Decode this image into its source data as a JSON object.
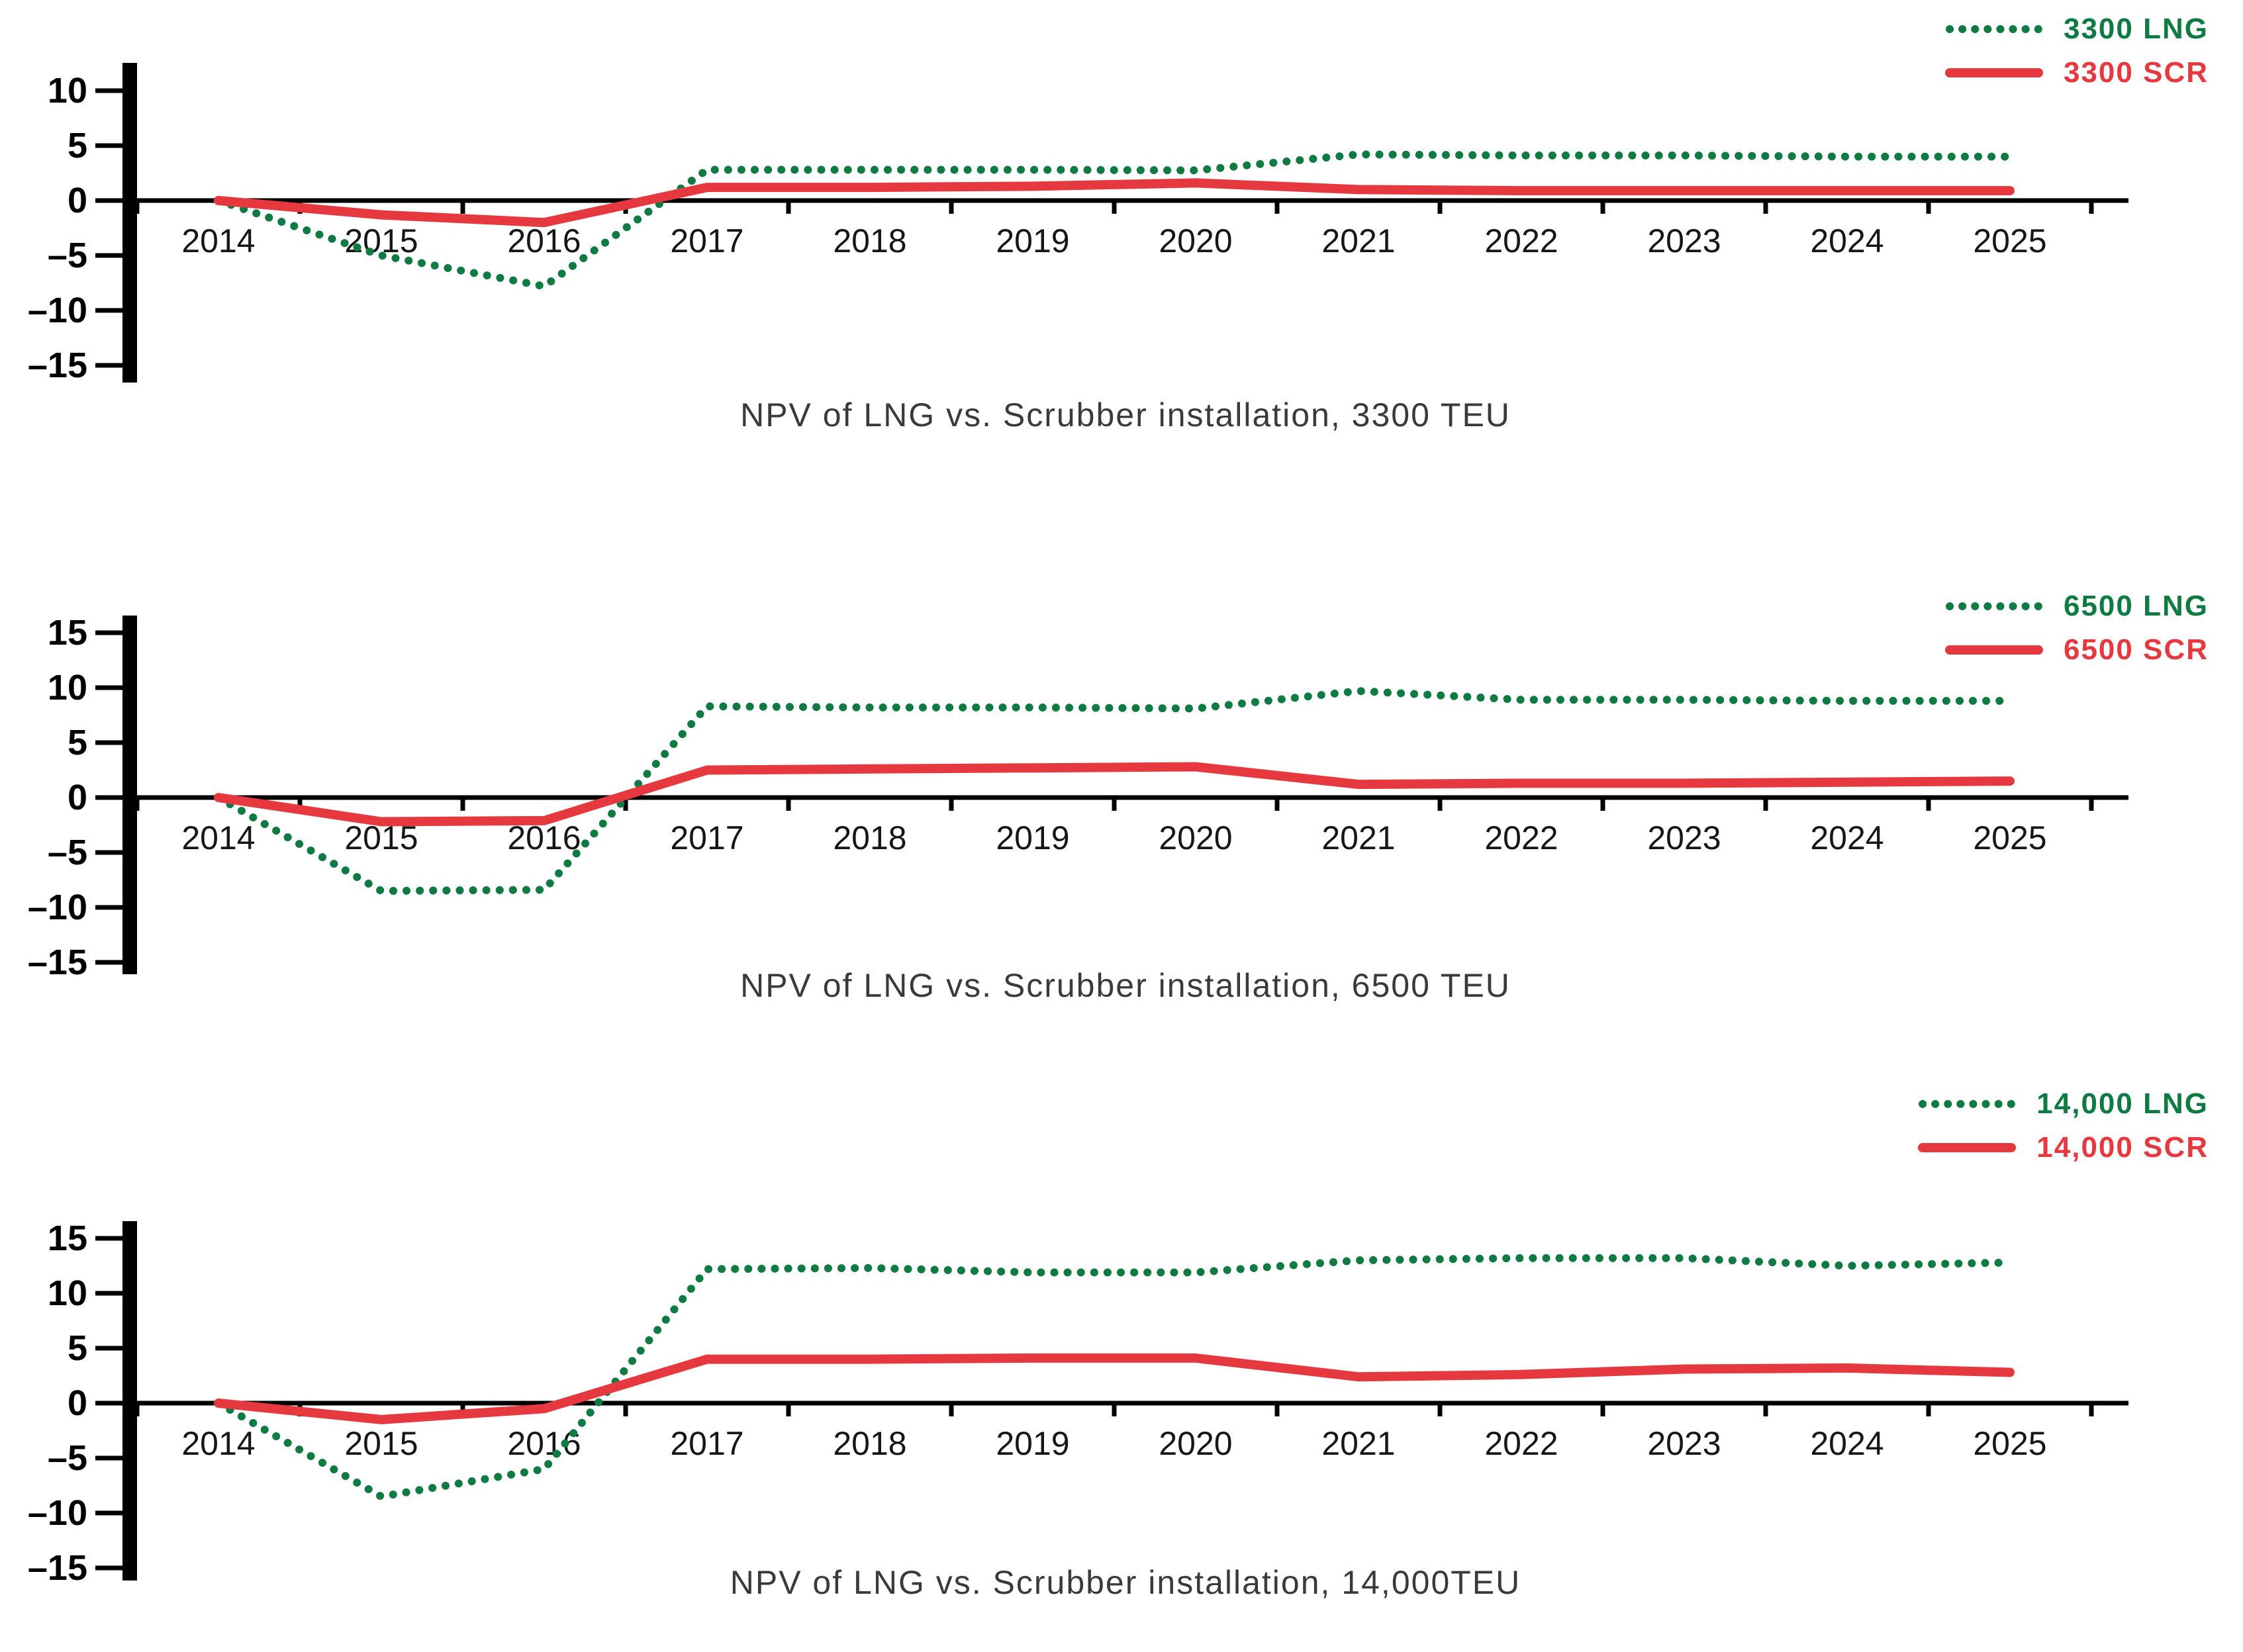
{
  "page": {
    "background": "#ffffff"
  },
  "colors": {
    "lng_green": "#0f7b42",
    "scr_red": "#e6393f",
    "axis_black": "#000000",
    "year_label": "#161616",
    "y_tick_label": "#000000",
    "title_gray": "#3a3a3a"
  },
  "chart_data": [
    {
      "type": "line",
      "title": "NPV of LNG vs. Scrubber installation, 3300 TEU",
      "xlabel": "",
      "ylabel": "",
      "categories": [
        2014,
        2015,
        2016,
        2017,
        2018,
        2019,
        2020,
        2021,
        2022,
        2023,
        2024,
        2025
      ],
      "y_ticks": [
        10,
        5,
        0,
        -5,
        -10,
        -15
      ],
      "ylim": [
        -16.5,
        12.5
      ],
      "grid": false,
      "legend_position": "top-right",
      "series": [
        {
          "name": "3300 LNG",
          "style": "dotted",
          "color_key": "lng_green",
          "values": [
            0,
            -5.0,
            -7.8,
            2.8,
            2.8,
            2.8,
            2.75,
            4.2,
            4.1,
            4.1,
            4.0,
            4.0
          ]
        },
        {
          "name": "3300 SCR",
          "style": "solid",
          "color_key": "scr_red",
          "values": [
            0,
            -1.3,
            -2.0,
            1.2,
            1.2,
            1.3,
            1.6,
            1.0,
            0.9,
            0.9,
            0.9,
            0.9
          ]
        }
      ]
    },
    {
      "type": "line",
      "title": "NPV of LNG vs. Scrubber installation, 6500 TEU",
      "xlabel": "",
      "ylabel": "",
      "categories": [
        2014,
        2015,
        2016,
        2017,
        2018,
        2019,
        2020,
        2021,
        2022,
        2023,
        2024,
        2025
      ],
      "y_ticks": [
        15,
        10,
        5,
        0,
        -5,
        -10,
        -15
      ],
      "ylim": [
        -16.5,
        16.5
      ],
      "grid": false,
      "legend_position": "top-right",
      "series": [
        {
          "name": "6500 LNG",
          "style": "dotted",
          "color_key": "lng_green",
          "values": [
            0,
            -8.5,
            -8.4,
            8.3,
            8.2,
            8.2,
            8.1,
            9.7,
            8.9,
            8.9,
            8.8,
            8.8
          ]
        },
        {
          "name": "6500 SCR",
          "style": "solid",
          "color_key": "scr_red",
          "values": [
            0,
            -2.2,
            -2.1,
            2.5,
            2.6,
            2.7,
            2.8,
            1.2,
            1.3,
            1.3,
            1.4,
            1.5
          ]
        }
      ]
    },
    {
      "type": "line",
      "title": "NPV of LNG vs. Scrubber installation, 14,000TEU",
      "xlabel": "",
      "ylabel": "",
      "categories": [
        2014,
        2015,
        2016,
        2017,
        2018,
        2019,
        2020,
        2021,
        2022,
        2023,
        2024,
        2025
      ],
      "y_ticks": [
        15,
        10,
        5,
        0,
        -5,
        -10,
        -15
      ],
      "ylim": [
        -16.5,
        16.5
      ],
      "grid": false,
      "legend_position": "top-right",
      "series": [
        {
          "name": "14,000 LNG",
          "style": "dotted",
          "color_key": "lng_green",
          "values": [
            0,
            -8.5,
            -6.0,
            12.2,
            12.3,
            11.9,
            11.9,
            13.0,
            13.2,
            13.2,
            12.5,
            12.8
          ]
        },
        {
          "name": "14,000 SCR",
          "style": "solid",
          "color_key": "scr_red",
          "values": [
            0,
            -1.5,
            -0.5,
            4.0,
            4.0,
            4.1,
            4.1,
            2.4,
            2.6,
            3.1,
            3.2,
            2.8
          ]
        }
      ]
    }
  ]
}
